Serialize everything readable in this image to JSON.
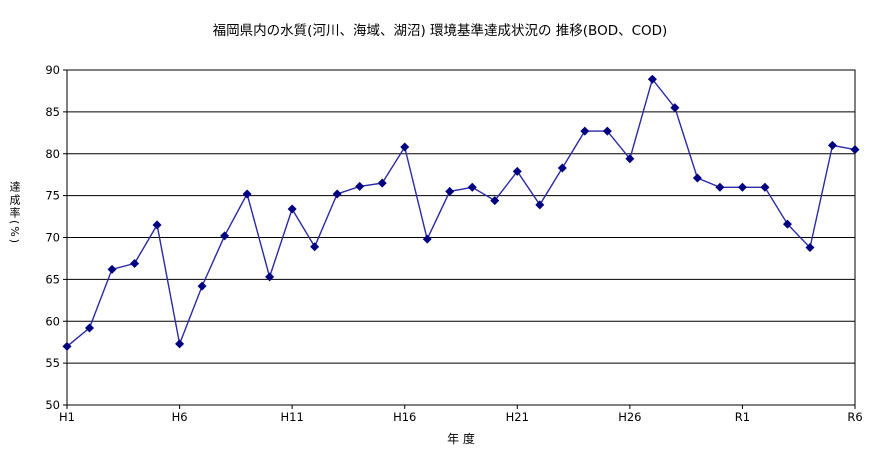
{
  "chart_data": {
    "type": "line",
    "title": "福岡県内の水質(河川、海域、湖沼) 環境基準達成状況の 推移(BOD、COD)",
    "xlabel": "年 度",
    "ylabel": "達成率(%)",
    "ylim": [
      50,
      90
    ],
    "ytick_step": 5,
    "grid": "horizontal",
    "legend": "none",
    "categories": [
      "H1",
      "H2",
      "H3",
      "H4",
      "H5",
      "H6",
      "H7",
      "H8",
      "H9",
      "H10",
      "H11",
      "H12",
      "H13",
      "H14",
      "H15",
      "H16",
      "H17",
      "H18",
      "H19",
      "H20",
      "H21",
      "H22",
      "H23",
      "H24",
      "H25",
      "H26",
      "H27",
      "H28",
      "H29",
      "H30",
      "R1",
      "R2",
      "R3",
      "R4",
      "R5",
      "R6"
    ],
    "values": [
      57.0,
      59.2,
      66.2,
      66.9,
      71.5,
      57.3,
      64.2,
      70.2,
      75.2,
      65.3,
      73.4,
      68.9,
      75.2,
      76.1,
      76.5,
      80.8,
      69.8,
      75.5,
      76.0,
      74.4,
      77.9,
      73.9,
      78.3,
      82.7,
      82.7,
      79.4,
      88.9,
      85.5,
      77.1,
      76.0,
      76.0,
      76.0,
      71.6,
      68.8,
      81.0,
      80.5
    ],
    "x_tick_labels": [
      "H1",
      "H6",
      "H11",
      "H16",
      "H21",
      "H26",
      "R1",
      "R6"
    ],
    "x_tick_indices": [
      0,
      5,
      10,
      15,
      20,
      25,
      30,
      35
    ],
    "y_tick_labels": [
      "50",
      "55",
      "60",
      "65",
      "70",
      "75",
      "80",
      "85",
      "90"
    ],
    "colors": {
      "line": "#2A2AA4",
      "marker": "#000080",
      "grid": "#000000",
      "border": "#000000",
      "text": "#000000",
      "background": "#FFFFFF"
    }
  }
}
